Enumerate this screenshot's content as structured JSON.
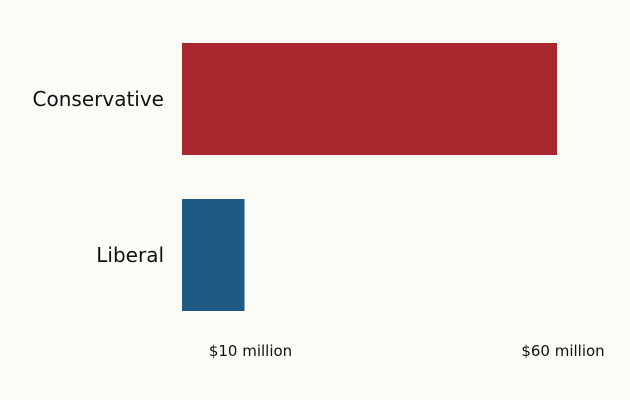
{
  "chart_data": {
    "type": "bar",
    "orientation": "horizontal",
    "categories": [
      "Conservative",
      "Liberal"
    ],
    "values": [
      60,
      10
    ],
    "value_labels": [
      "$60 million",
      "$10 million"
    ],
    "colors": [
      "#a8262e",
      "#1f5a85"
    ],
    "xlim": [
      0,
      60
    ],
    "grid": false,
    "legend": "none"
  }
}
